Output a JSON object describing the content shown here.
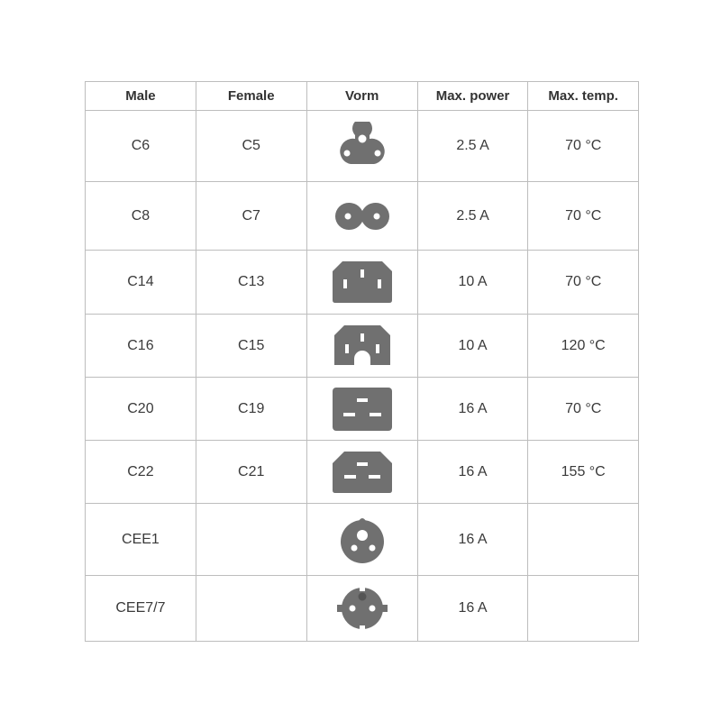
{
  "headers": [
    "Male",
    "Female",
    "Vorm",
    "Max. power",
    "Max. temp."
  ],
  "icon_color": "#707070",
  "rows": [
    {
      "male": "C6",
      "female": "C5",
      "shape": "c5-cloverleaf-icon",
      "power": "2.5 A",
      "temp": "70 °C"
    },
    {
      "male": "C8",
      "female": "C7",
      "shape": "c7-figure8-icon",
      "power": "2.5 A",
      "temp": "70 °C"
    },
    {
      "male": "C14",
      "female": "C13",
      "shape": "c13-icon",
      "power": "10 A",
      "temp": "70 °C"
    },
    {
      "male": "C16",
      "female": "C15",
      "shape": "c15-icon",
      "power": "10 A",
      "temp": "120 °C"
    },
    {
      "male": "C20",
      "female": "C19",
      "shape": "c19-icon",
      "power": "16 A",
      "temp": "70 °C"
    },
    {
      "male": "C22",
      "female": "C21",
      "shape": "c21-icon",
      "power": "16 A",
      "temp": "155 °C"
    },
    {
      "male": "CEE1",
      "female": "",
      "shape": "cee1-icon",
      "power": "16 A",
      "temp": ""
    },
    {
      "male": "CEE7/7",
      "female": "",
      "shape": "cee7-7-icon",
      "power": "16 A",
      "temp": ""
    }
  ]
}
